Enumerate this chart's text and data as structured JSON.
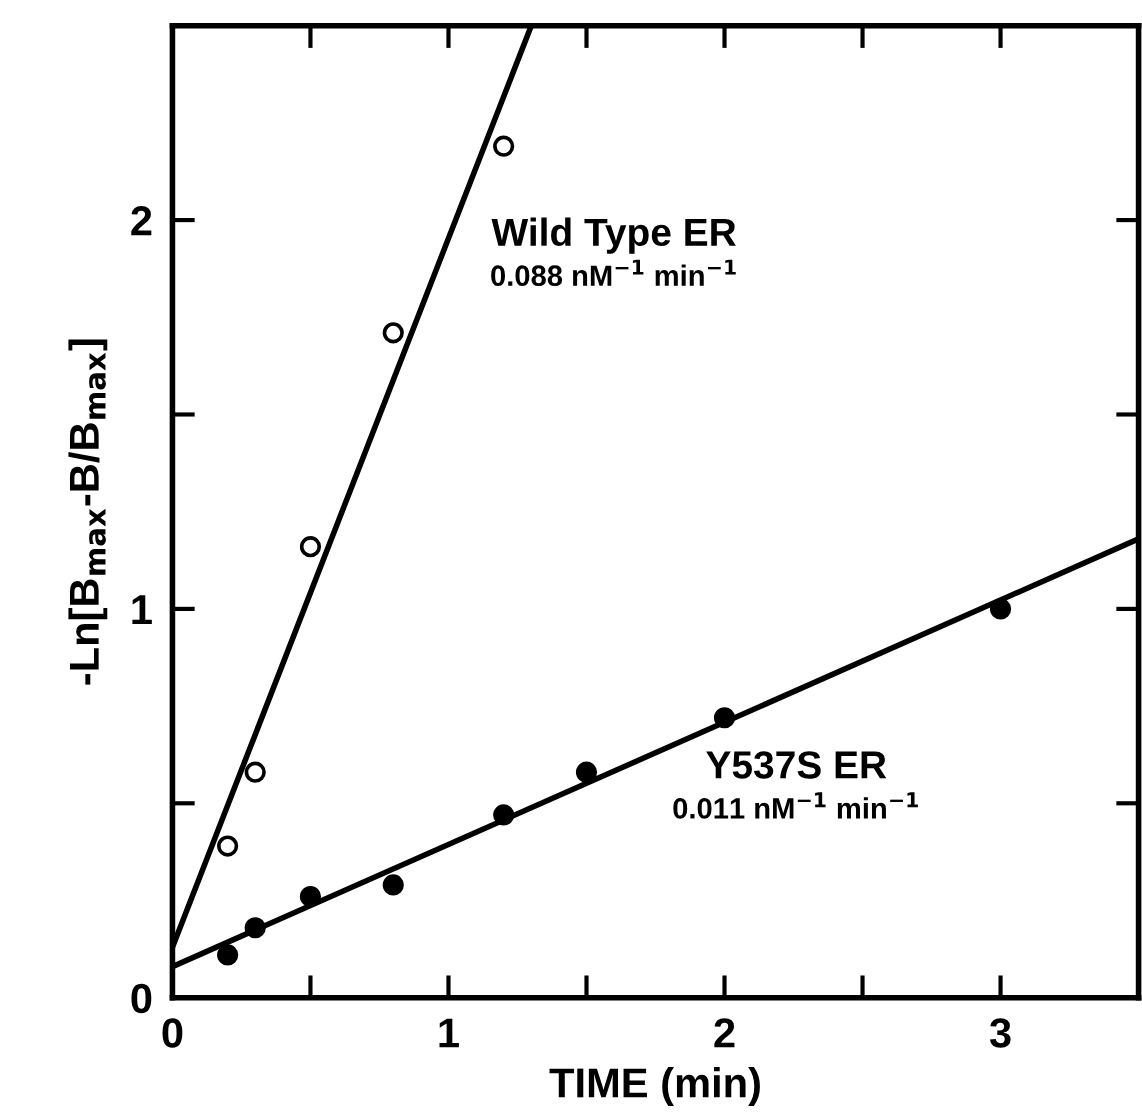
{
  "chart_data": {
    "type": "scatter",
    "xlabel": "TIME (min)",
    "ylabel": "-Ln[B$_{max}$-B/B$_{max}$]",
    "xlim": [
      0,
      3.5
    ],
    "ylim": [
      0,
      2.5
    ],
    "xticks": [
      0,
      {
        "value": 0.5,
        "label": null
      },
      1,
      {
        "value": 1.5,
        "label": null
      },
      2,
      {
        "value": 2.5,
        "label": null
      },
      3,
      {
        "value": 3.5,
        "label": null
      }
    ],
    "yticks": [
      0,
      {
        "value": 0.5,
        "label": null
      },
      1,
      {
        "value": 1.5,
        "label": null
      },
      2,
      {
        "value": 2.5,
        "label": null
      }
    ],
    "grid": false,
    "series": [
      {
        "name": "Wild Type ER",
        "marker": "circle",
        "color": "#ffffff",
        "x": [
          0.2,
          0.3,
          0.5,
          0.8,
          1.2
        ],
        "values": [
          0.39,
          0.58,
          1.16,
          1.71,
          2.19
        ]
      },
      {
        "name": "Y537S ER",
        "marker": "circle",
        "color": "#000000",
        "x": [
          0.2,
          0.3,
          0.5,
          0.8,
          1.2,
          1.5,
          2.0,
          3.0
        ],
        "values": [
          0.11,
          0.18,
          0.26,
          0.29,
          0.47,
          0.58,
          0.72,
          1.0
        ]
      },
      {
        "type": "line",
        "marker": "none",
        "color": "#000000",
        "x": [
          0,
          1.3
        ],
        "values": [
          0.13,
          2.5
        ]
      },
      {
        "type": "line",
        "marker": "none",
        "color": "#000000",
        "x": [
          0,
          3.5
        ],
        "values": [
          0.08,
          1.18
        ]
      }
    ],
    "annotations": [
      "0.088 nM$^{−1}$ min$^{−1}$",
      "0.011 nM$^{−1}$ min$^{−1}$"
    ]
  }
}
